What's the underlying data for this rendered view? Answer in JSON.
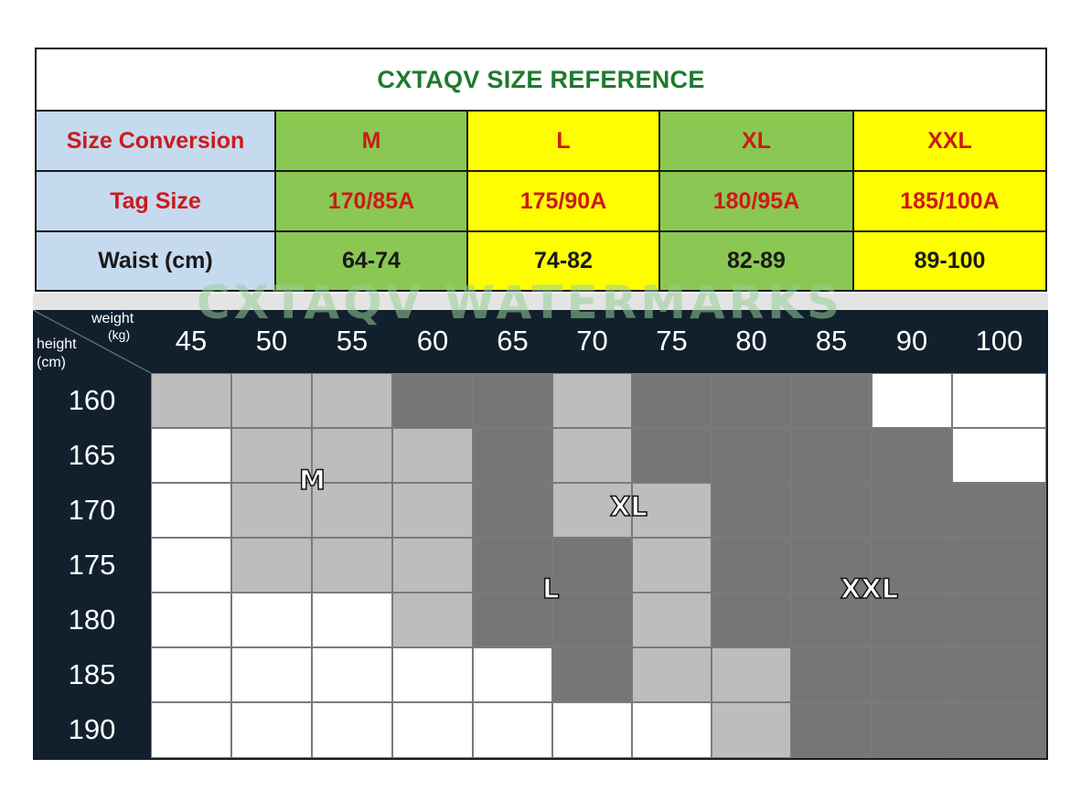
{
  "reference": {
    "title": "CXTAQV SIZE REFERENCE",
    "row_labels": {
      "size_conversion": "Size Conversion",
      "tag_size": "Tag Size",
      "waist": "Waist (cm)"
    },
    "sizes": [
      {
        "size": "M",
        "tag": "170/85A",
        "waist": "64-74",
        "color": "#8ac853"
      },
      {
        "size": "L",
        "tag": "175/90A",
        "waist": "74-82",
        "color": "#fefe00"
      },
      {
        "size": "XL",
        "tag": "180/95A",
        "waist": "82-89",
        "color": "#8ac853"
      },
      {
        "size": "XXL",
        "tag": "185/100A",
        "waist": "89-100",
        "color": "#fefe00"
      }
    ],
    "colors": {
      "title": "#1e7a2e",
      "label_bg": "#c5d9ef",
      "accent_text": "#cc1a1a"
    }
  },
  "watermark": "CXTAQV WATERMARKS",
  "size_chart": {
    "corner": {
      "weight": "weight",
      "weight_unit": "(kg)",
      "height": "height",
      "height_unit": "(cm)"
    },
    "weights": [
      "45",
      "50",
      "55",
      "60",
      "65",
      "70",
      "75",
      "80",
      "85",
      "90",
      "100"
    ],
    "heights": [
      "160",
      "165",
      "170",
      "175",
      "180",
      "185",
      "190"
    ],
    "grid": [
      [
        "m",
        "m",
        "m",
        "d",
        "d",
        "m",
        "d",
        "d",
        "d",
        "w",
        "w"
      ],
      [
        "w",
        "m",
        "m",
        "m",
        "d",
        "m",
        "d",
        "d",
        "d",
        "d",
        "w"
      ],
      [
        "w",
        "m",
        "m",
        "m",
        "d",
        "m",
        "m",
        "d",
        "d",
        "d",
        "d"
      ],
      [
        "w",
        "m",
        "m",
        "m",
        "d",
        "d",
        "m",
        "d",
        "d",
        "d",
        "d"
      ],
      [
        "w",
        "w",
        "w",
        "m",
        "d",
        "d",
        "m",
        "d",
        "d",
        "d",
        "d"
      ],
      [
        "w",
        "w",
        "w",
        "w",
        "w",
        "d",
        "m",
        "m",
        "d",
        "d",
        "d"
      ],
      [
        "w",
        "w",
        "w",
        "w",
        "w",
        "w",
        "w",
        "m",
        "d",
        "d",
        "d"
      ]
    ],
    "zone_labels": [
      "M",
      "XL",
      "L",
      "XXL"
    ],
    "colors": {
      "background": "#12202e",
      "white": "#ffffff",
      "light": "#bdbdbd",
      "dark": "#767676"
    }
  }
}
